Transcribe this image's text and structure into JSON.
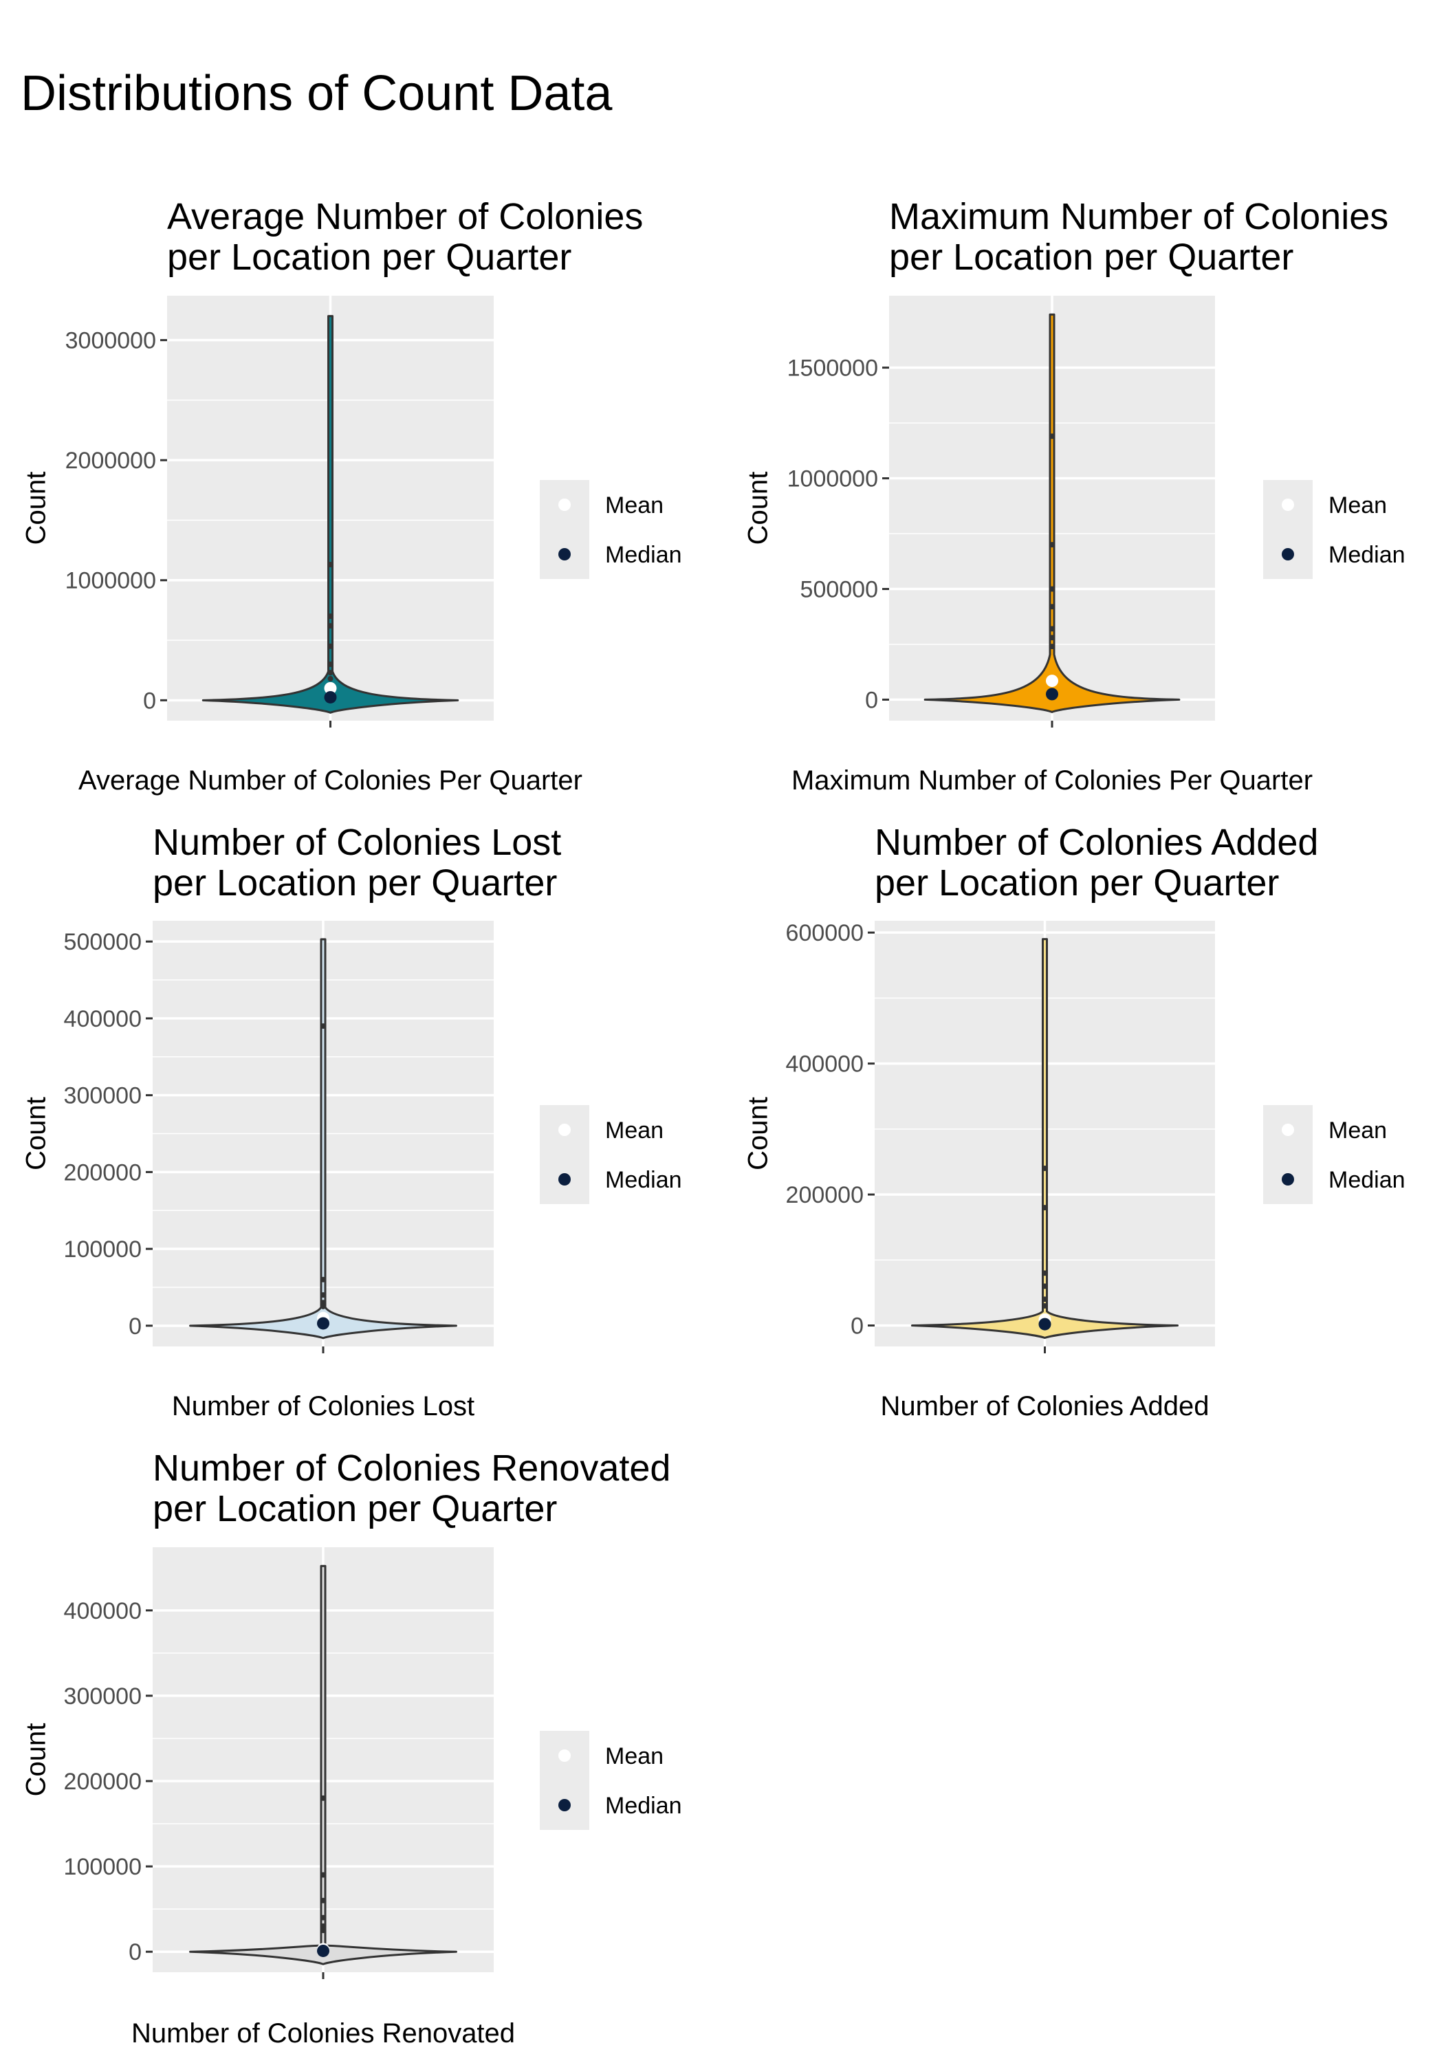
{
  "title": "Distributions of Count Data",
  "legend": {
    "items": [
      {
        "label": "Mean",
        "color": "#ffffff"
      },
      {
        "label": "Median",
        "color": "#0b1f3f"
      }
    ]
  },
  "colors": {
    "panel_background": "#ebebeb",
    "grid": "#ffffff",
    "outline": "#333333"
  },
  "chart_data": [
    {
      "type": "violin",
      "title_lines": [
        "Average Number of Colonies",
        "per Location per Quarter"
      ],
      "xlabel": "Average Number of Colonies Per Quarter",
      "ylabel": "Count",
      "fill": "#0e7c86",
      "ylim": [
        -170000,
        3370000
      ],
      "yticks": [
        0,
        1000000,
        2000000,
        3000000
      ],
      "ytick_labels": [
        "0",
        "1000000",
        "2000000",
        "3000000"
      ],
      "max": 3200000,
      "mean": 100000,
      "median": 25000,
      "outliers": [
        1130000,
        700000,
        620000,
        450000,
        300000,
        230000,
        180000
      ]
    },
    {
      "type": "violin",
      "title_lines": [
        "Maximum Number of Colonies",
        "per Location per Quarter"
      ],
      "xlabel": "Maximum Number of Colonies Per Quarter",
      "ylabel": "Count",
      "fill": "#f5a100",
      "ylim": [
        -95000,
        1825000
      ],
      "yticks": [
        0,
        500000,
        1000000,
        1500000
      ],
      "ytick_labels": [
        "0",
        "500000",
        "1000000",
        "1500000"
      ],
      "max": 1740000,
      "mean": 85000,
      "median": 25000,
      "outliers": [
        1190000,
        700000,
        500000,
        420000,
        320000,
        280000,
        240000
      ]
    },
    {
      "type": "violin",
      "title_lines": [
        "Number of Colonies Lost",
        "per Location per Quarter"
      ],
      "xlabel": "Number of Colonies Lost",
      "ylabel": "Count",
      "fill": "#cfe2ee",
      "ylim": [
        -27000,
        527000
      ],
      "yticks": [
        0,
        100000,
        200000,
        300000,
        400000,
        500000
      ],
      "ytick_labels": [
        "0",
        "100000",
        "200000",
        "300000",
        "400000",
        "500000"
      ],
      "max": 503000,
      "mean": 10000,
      "median": 3000,
      "outliers": [
        390000,
        60000,
        40000,
        30000,
        25000
      ]
    },
    {
      "type": "violin",
      "title_lines": [
        "Number of Colonies Added",
        "per Location per Quarter"
      ],
      "xlabel": "Number of Colonies Added",
      "ylabel": "Count",
      "fill": "#f7e08a",
      "ylim": [
        -32000,
        618000
      ],
      "yticks": [
        0,
        200000,
        400000,
        600000
      ],
      "ytick_labels": [
        "0",
        "200000",
        "400000",
        "600000"
      ],
      "max": 590000,
      "mean": 9000,
      "median": 2000,
      "outliers": [
        240000,
        180000,
        80000,
        60000,
        40000,
        30000
      ]
    },
    {
      "type": "violin",
      "title_lines": [
        "Number of Colonies Renovated",
        "per Location per Quarter"
      ],
      "xlabel": "Number of Colonies Renovated",
      "ylabel": "Count",
      "fill": "#dddddd",
      "ylim": [
        -24000,
        474000
      ],
      "yticks": [
        0,
        100000,
        200000,
        300000,
        400000
      ],
      "ytick_labels": [
        "0",
        "100000",
        "200000",
        "300000",
        "400000"
      ],
      "max": 452000,
      "mean": 3000,
      "median": 1000,
      "outliers": [
        180000,
        90000,
        60000,
        40000,
        30000,
        25000
      ]
    }
  ]
}
